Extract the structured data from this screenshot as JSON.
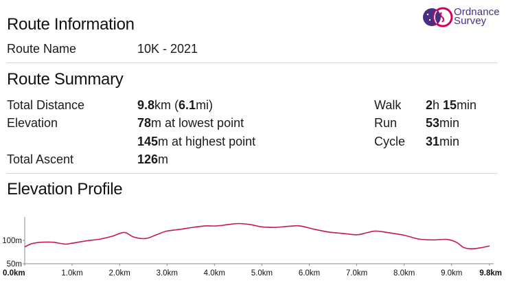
{
  "brand": {
    "name_line1": "Ordnance",
    "name_line2": "Survey",
    "accent": "#4b2e83",
    "accent2": "#d40058"
  },
  "route_info": {
    "heading": "Route Information",
    "name_label": "Route Name",
    "name_value": "10K - 2021"
  },
  "route_summary": {
    "heading": "Route Summary",
    "distance_label": "Total Distance",
    "distance_km": "9.8",
    "distance_km_unit": "km (",
    "distance_mi": "6.1",
    "distance_mi_unit": "mi)",
    "elevation_label": "Elevation",
    "elev_low": "78",
    "elev_low_suffix": "m at lowest point",
    "elev_high": "145",
    "elev_high_suffix": "m at highest point",
    "ascent_label": "Total Ascent",
    "ascent_value": "126",
    "ascent_unit": "m",
    "walk_label": "Walk",
    "walk_h": "2",
    "walk_h_unit": "h ",
    "walk_min": "15",
    "walk_min_unit": "min",
    "run_label": "Run",
    "run_min": "53",
    "run_min_unit": "min",
    "cycle_label": "Cycle",
    "cycle_min": "31",
    "cycle_min_unit": "min"
  },
  "elevation_profile": {
    "heading": "Elevation Profile"
  },
  "chart_data": {
    "type": "line",
    "title": "",
    "xlabel": "",
    "ylabel": "",
    "line_color": "#c2185b",
    "xlim": [
      0,
      9.8
    ],
    "ylim": [
      50,
      150
    ],
    "x_ticks": [
      "0.0km",
      "1.0km",
      "2.0km",
      "3.0km",
      "4.0km",
      "5.0km",
      "6.0km",
      "7.0km",
      "8.0km",
      "9.0km",
      "9.8km"
    ],
    "x_tick_values": [
      0,
      1,
      2,
      3,
      4,
      5,
      6,
      7,
      8,
      9,
      9.8
    ],
    "y_ticks": [
      "100m",
      "50m"
    ],
    "y_tick_values": [
      100,
      50
    ],
    "series": [
      {
        "x": [
          0.0,
          0.15,
          0.35,
          0.6,
          0.85,
          1.0,
          1.3,
          1.6,
          1.85,
          2.1,
          2.3,
          2.55,
          2.8,
          3.0,
          3.3,
          3.55,
          3.8,
          4.05,
          4.3,
          4.5,
          4.75,
          5.0,
          5.3,
          5.55,
          5.8,
          6.1,
          6.4,
          6.7,
          7.0,
          7.2,
          7.4,
          7.7,
          8.0,
          8.3,
          8.6,
          8.9,
          9.1,
          9.25,
          9.4,
          9.6,
          9.8
        ],
        "y": [
          86,
          93,
          96,
          96,
          92,
          94,
          99,
          103,
          109,
          117,
          107,
          104,
          113,
          120,
          124,
          128,
          131,
          131,
          134,
          136,
          134,
          129,
          128,
          130,
          131,
          124,
          118,
          115,
          112,
          116,
          120,
          116,
          111,
          103,
          101,
          102,
          96,
          85,
          82,
          84,
          88
        ]
      }
    ]
  }
}
